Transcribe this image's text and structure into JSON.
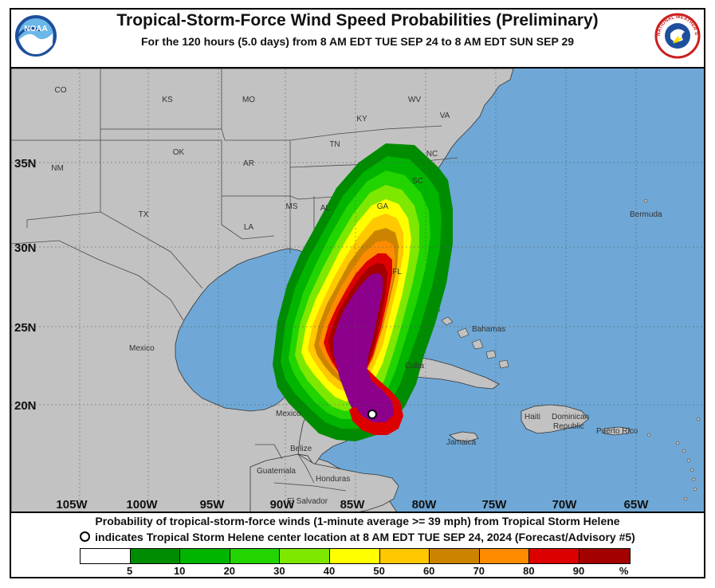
{
  "header": {
    "title": "Tropical-Storm-Force Wind Speed Probabilities (Preliminary)",
    "subtitle": "For the 120 hours (5.0 days) from 8 AM EDT TUE SEP 24 to 8 AM EDT SUN SEP 29",
    "noaa_logo_text": "NOAA",
    "nws_logo_text": "NATIONAL WEATHER SERVICE"
  },
  "map": {
    "lon_labels": [
      "105W",
      "100W",
      "95W",
      "90W",
      "85W",
      "80W",
      "75W",
      "70W",
      "65W"
    ],
    "lat_labels": [
      "35N",
      "30N",
      "25N",
      "20N"
    ],
    "state_labels": [
      "CO",
      "KS",
      "MO",
      "KY",
      "WV",
      "VA",
      "NM",
      "OK",
      "AR",
      "TN",
      "NC",
      "SC",
      "TX",
      "LA",
      "MS",
      "AL",
      "GA",
      "FL"
    ],
    "place_labels": [
      "Bermuda",
      "Mexico",
      "Bahamas",
      "Cuba",
      "Dominican",
      "Republic",
      "Haiti",
      "Puerto Rico",
      "Jamaica",
      "Mexico",
      "Belize",
      "Guatemala",
      "Honduras",
      "El Salvador"
    ],
    "storm_name": "Tropical Storm Helene",
    "colors": {
      "ocean": "#6fa8d6",
      "land": "#c2c2c2",
      "border": "#4a4a4a"
    }
  },
  "caption": {
    "line1": "Probability of tropical-storm-force winds (1-minute average >= 39 mph) from Tropical Storm Helene",
    "line2": "indicates Tropical Storm Helene center location at 8 AM EDT TUE SEP 24, 2024 (Forecast/Advisory #5)"
  },
  "legend": {
    "colors": [
      "#ffffff",
      "#008c00",
      "#00b400",
      "#22d400",
      "#7fe800",
      "#ffff00",
      "#ffc800",
      "#cc8400",
      "#ff8c00",
      "#dd0000",
      "#a30000",
      "#8c008c"
    ],
    "labels": [
      "5",
      "10",
      "20",
      "30",
      "40",
      "50",
      "60",
      "70",
      "80",
      "90",
      "%"
    ]
  }
}
